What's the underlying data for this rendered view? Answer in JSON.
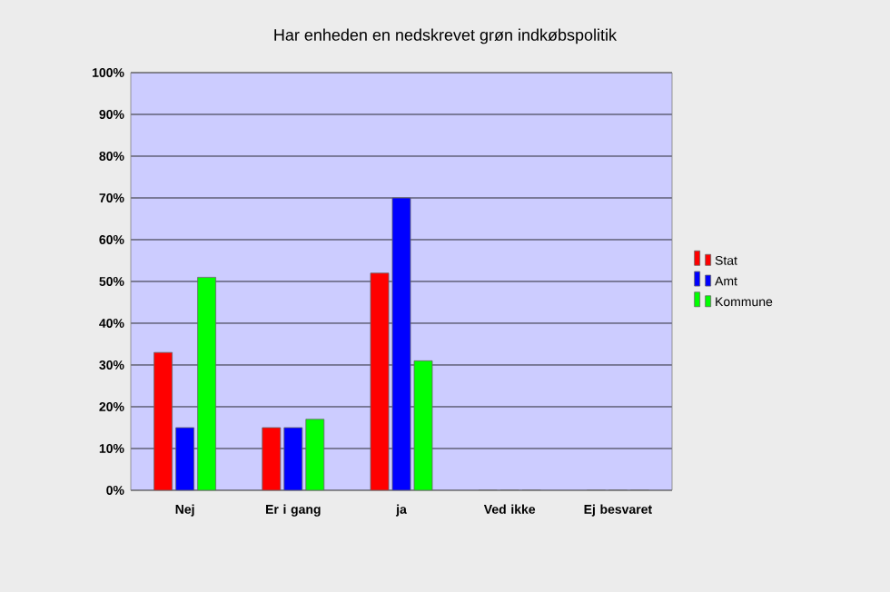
{
  "chart_data": {
    "type": "bar",
    "title": "Har enheden en nedskrevet grøn indkøbspolitik",
    "categories": [
      "Nej",
      "Er i gang",
      "ja",
      "Ved ikke",
      "Ej besvaret"
    ],
    "series": [
      {
        "name": "Stat",
        "color": "#ff0000",
        "values": [
          33,
          15,
          52,
          0,
          0
        ]
      },
      {
        "name": "Amt",
        "color": "#0000ff",
        "values": [
          15,
          15,
          70,
          0,
          0
        ]
      },
      {
        "name": "Kommune",
        "color": "#00ff00",
        "values": [
          51,
          17,
          31,
          0,
          0
        ]
      }
    ],
    "ylim": [
      0,
      100
    ],
    "yticks": [
      {
        "value": 0,
        "label": "0%"
      },
      {
        "value": 10,
        "label": "10%"
      },
      {
        "value": 20,
        "label": "20%"
      },
      {
        "value": 30,
        "label": "30%"
      },
      {
        "value": 40,
        "label": "40%"
      },
      {
        "value": 50,
        "label": "50%"
      },
      {
        "value": 60,
        "label": "60%"
      },
      {
        "value": 70,
        "label": "70%"
      },
      {
        "value": 80,
        "label": "80%"
      },
      {
        "value": 90,
        "label": "90%"
      },
      {
        "value": 100,
        "label": "100%"
      }
    ],
    "grid": "y",
    "legend": "right"
  }
}
